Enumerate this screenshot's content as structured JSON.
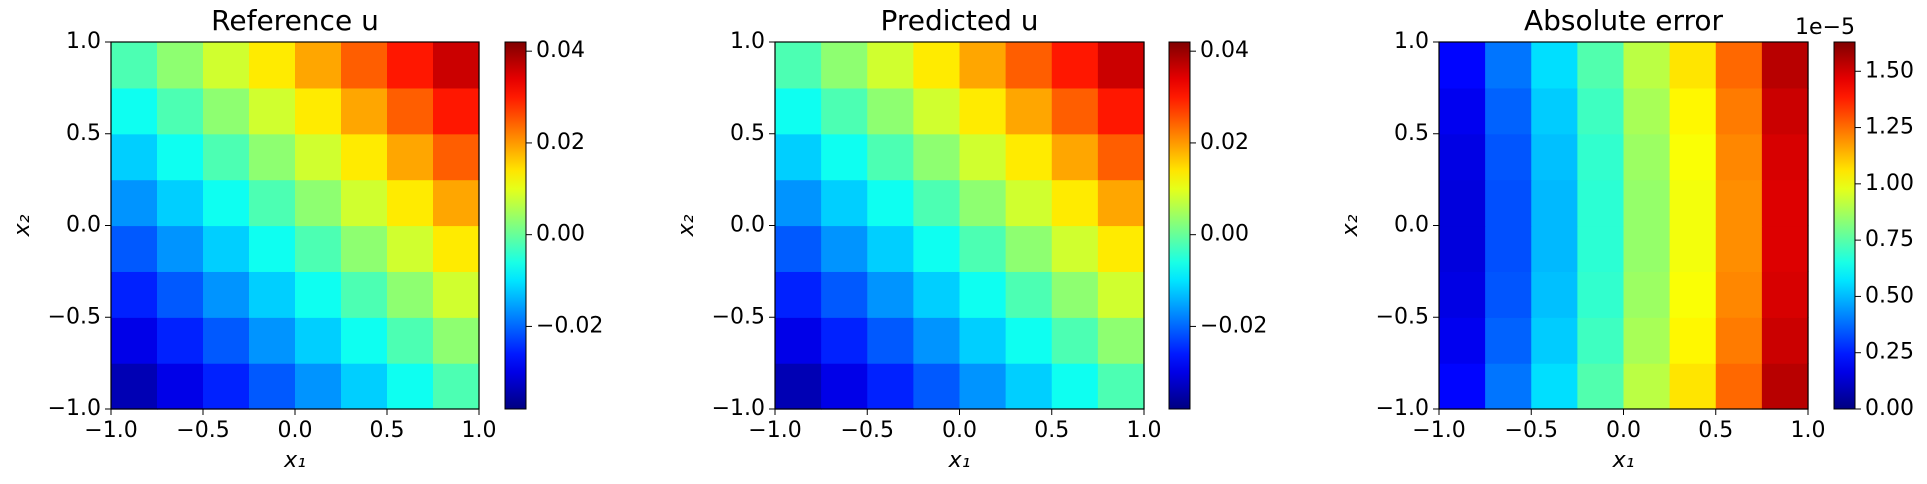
{
  "chart_data": [
    {
      "type": "heatmap",
      "title": "Reference u",
      "xlabel": "x₁",
      "ylabel": "x₂",
      "colormap": "jet",
      "x": [
        -0.875,
        -0.625,
        -0.375,
        -0.125,
        0.125,
        0.375,
        0.625,
        0.875
      ],
      "y": [
        -0.875,
        -0.625,
        -0.375,
        -0.125,
        0.125,
        0.375,
        0.625,
        0.875
      ],
      "values": [
        [
          -0.0339,
          -0.0298,
          -0.0254,
          -0.021,
          -0.0164,
          -0.0118,
          -0.0069,
          -0.002
        ],
        [
          -0.0298,
          -0.0254,
          -0.021,
          -0.0164,
          -0.0118,
          -0.0069,
          -0.002,
          0.0031
        ],
        [
          -0.0254,
          -0.021,
          -0.0164,
          -0.0118,
          -0.0069,
          -0.002,
          0.0031,
          0.0083
        ],
        [
          -0.021,
          -0.0164,
          -0.0118,
          -0.0069,
          -0.002,
          0.0031,
          0.0083,
          0.0136
        ],
        [
          -0.0164,
          -0.0118,
          -0.0069,
          -0.002,
          0.0031,
          0.0083,
          0.0136,
          0.019
        ],
        [
          -0.0118,
          -0.0069,
          -0.002,
          0.0031,
          0.0083,
          0.0136,
          0.019,
          0.0246
        ],
        [
          -0.0069,
          -0.002,
          0.0031,
          0.0083,
          0.0136,
          0.019,
          0.0246,
          0.0302
        ],
        [
          -0.002,
          0.0031,
          0.0083,
          0.0136,
          0.019,
          0.0246,
          0.0302,
          0.0361
        ]
      ],
      "xlim": [
        -1,
        1
      ],
      "ylim": [
        -1,
        1
      ],
      "xticks": [
        {
          "value": -1,
          "label": "−1.0"
        },
        {
          "value": -0.5,
          "label": "−0.5"
        },
        {
          "value": 0,
          "label": "0.0"
        },
        {
          "value": 0.5,
          "label": "0.5"
        },
        {
          "value": 1,
          "label": "1.0"
        }
      ],
      "yticks": [
        {
          "value": -1,
          "label": "−1.0"
        },
        {
          "value": -0.5,
          "label": "−0.5"
        },
        {
          "value": 0,
          "label": "0.0"
        },
        {
          "value": 0.5,
          "label": "0.5"
        },
        {
          "value": 1,
          "label": "1.0"
        }
      ],
      "clim": [
        -0.038,
        0.042
      ],
      "cticks": [
        {
          "value": -0.02,
          "label": "−0.02"
        },
        {
          "value": 0,
          "label": "0.00"
        },
        0.02,
        0.04
      ]
    },
    {
      "type": "heatmap",
      "title": "Predicted u",
      "xlabel": "x₁",
      "ylabel": "x₂",
      "colormap": "jet",
      "x": [
        -0.875,
        -0.625,
        -0.375,
        -0.125,
        0.125,
        0.375,
        0.625,
        0.875
      ],
      "y": [
        -0.875,
        -0.625,
        -0.375,
        -0.125,
        0.125,
        0.375,
        0.625,
        0.875
      ],
      "values": [
        [
          -0.0339,
          -0.0298,
          -0.0254,
          -0.021,
          -0.0164,
          -0.0118,
          -0.0069,
          -0.002
        ],
        [
          -0.0298,
          -0.0254,
          -0.021,
          -0.0164,
          -0.0118,
          -0.0069,
          -0.002,
          0.0031
        ],
        [
          -0.0254,
          -0.021,
          -0.0164,
          -0.0118,
          -0.0069,
          -0.002,
          0.0031,
          0.0083
        ],
        [
          -0.021,
          -0.0164,
          -0.0118,
          -0.0069,
          -0.002,
          0.0031,
          0.0083,
          0.0136
        ],
        [
          -0.0164,
          -0.0118,
          -0.0069,
          -0.002,
          0.0031,
          0.0083,
          0.0136,
          0.019
        ],
        [
          -0.0118,
          -0.0069,
          -0.002,
          0.0031,
          0.0083,
          0.0136,
          0.019,
          0.0246
        ],
        [
          -0.0069,
          -0.002,
          0.0031,
          0.0083,
          0.0136,
          0.019,
          0.0246,
          0.0302
        ],
        [
          -0.002,
          0.0031,
          0.0083,
          0.0136,
          0.019,
          0.0246,
          0.0302,
          0.0361
        ]
      ],
      "xlim": [
        -1,
        1
      ],
      "ylim": [
        -1,
        1
      ],
      "xticks": [
        {
          "value": -1,
          "label": "−1.0"
        },
        {
          "value": -0.5,
          "label": "−0.5"
        },
        {
          "value": 0,
          "label": "0.0"
        },
        {
          "value": 0.5,
          "label": "0.5"
        },
        {
          "value": 1,
          "label": "1.0"
        }
      ],
      "yticks": [
        {
          "value": -1,
          "label": "−1.0"
        },
        {
          "value": -0.5,
          "label": "−0.5"
        },
        {
          "value": 0,
          "label": "0.0"
        },
        {
          "value": 0.5,
          "label": "0.5"
        },
        {
          "value": 1,
          "label": "1.0"
        }
      ],
      "clim": [
        -0.038,
        0.042
      ],
      "cticks": [
        {
          "value": -0.02,
          "label": "−0.02"
        },
        {
          "value": 0,
          "label": "0.00"
        },
        0.02,
        0.04
      ]
    },
    {
      "type": "heatmap",
      "title": "Absolute error",
      "xlabel": "x₁",
      "ylabel": "x₂",
      "colormap": "jet",
      "x": [
        -0.875,
        -0.625,
        -0.375,
        -0.125,
        0.125,
        0.375,
        0.625,
        0.875
      ],
      "y": [
        -0.875,
        -0.625,
        -0.375,
        -0.125,
        0.125,
        0.375,
        0.625,
        0.875
      ],
      "values": [
        [
          0.21,
          0.39,
          0.56,
          0.74,
          0.91,
          1.06,
          1.26,
          1.54
        ],
        [
          0.18,
          0.36,
          0.53,
          0.71,
          0.88,
          1.03,
          1.23,
          1.51
        ],
        [
          0.16,
          0.34,
          0.51,
          0.69,
          0.86,
          1.01,
          1.21,
          1.49
        ],
        [
          0.15,
          0.33,
          0.5,
          0.68,
          0.85,
          1.0,
          1.2,
          1.48
        ],
        [
          0.15,
          0.33,
          0.5,
          0.68,
          0.85,
          1.0,
          1.2,
          1.48
        ],
        [
          0.16,
          0.34,
          0.51,
          0.69,
          0.86,
          1.01,
          1.21,
          1.49
        ],
        [
          0.18,
          0.36,
          0.53,
          0.71,
          0.88,
          1.03,
          1.23,
          1.51
        ],
        [
          0.21,
          0.39,
          0.56,
          0.74,
          0.91,
          1.06,
          1.26,
          1.54
        ]
      ],
      "xlim": [
        -1,
        1
      ],
      "ylim": [
        -1,
        1
      ],
      "xticks": [
        {
          "value": -1,
          "label": "−1.0"
        },
        {
          "value": -0.5,
          "label": "−0.5"
        },
        {
          "value": 0,
          "label": "0.0"
        },
        {
          "value": 0.5,
          "label": "0.5"
        },
        {
          "value": 1,
          "label": "1.0"
        }
      ],
      "yticks": [
        {
          "value": -1,
          "label": "−1.0"
        },
        {
          "value": -0.5,
          "label": "−0.5"
        },
        {
          "value": 0,
          "label": "0.0"
        },
        {
          "value": 0.5,
          "label": "0.5"
        },
        {
          "value": 1,
          "label": "1.0"
        }
      ],
      "clim": [
        0,
        1.63
      ],
      "cticks": [
        {
          "value": 0,
          "label": "0.00"
        },
        {
          "value": 0.25,
          "label": "0.25"
        },
        {
          "value": 0.5,
          "label": "0.50"
        },
        {
          "value": 0.75,
          "label": "0.75"
        },
        {
          "value": 1,
          "label": "1.00"
        },
        {
          "value": 1.25,
          "label": "1.25"
        },
        {
          "value": 1.5,
          "label": "1.50"
        }
      ],
      "coffset": "1e−5"
    }
  ]
}
